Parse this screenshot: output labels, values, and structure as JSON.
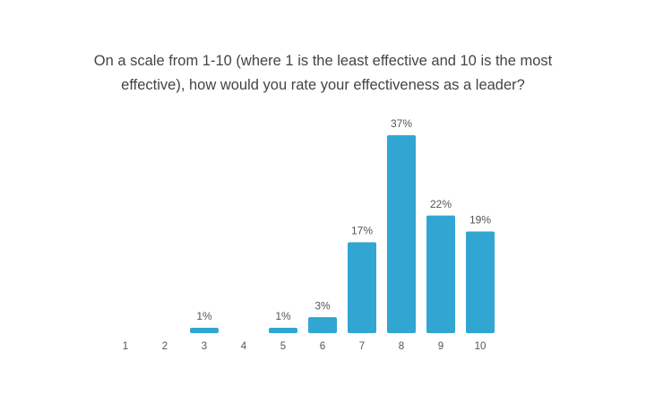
{
  "chart_data": {
    "type": "bar",
    "title": "On a scale from 1-10 (where 1 is the least effective and 10 is the most effective), how would you rate your effectiveness as a leader?",
    "categories": [
      "1",
      "2",
      "3",
      "4",
      "5",
      "6",
      "7",
      "8",
      "9",
      "10"
    ],
    "values": [
      null,
      null,
      1,
      null,
      1,
      3,
      17,
      37,
      22,
      19
    ],
    "value_labels": [
      null,
      null,
      "1%",
      null,
      "1%",
      "3%",
      "17%",
      "37%",
      "22%",
      "19%"
    ],
    "color": "#31a6d2"
  }
}
